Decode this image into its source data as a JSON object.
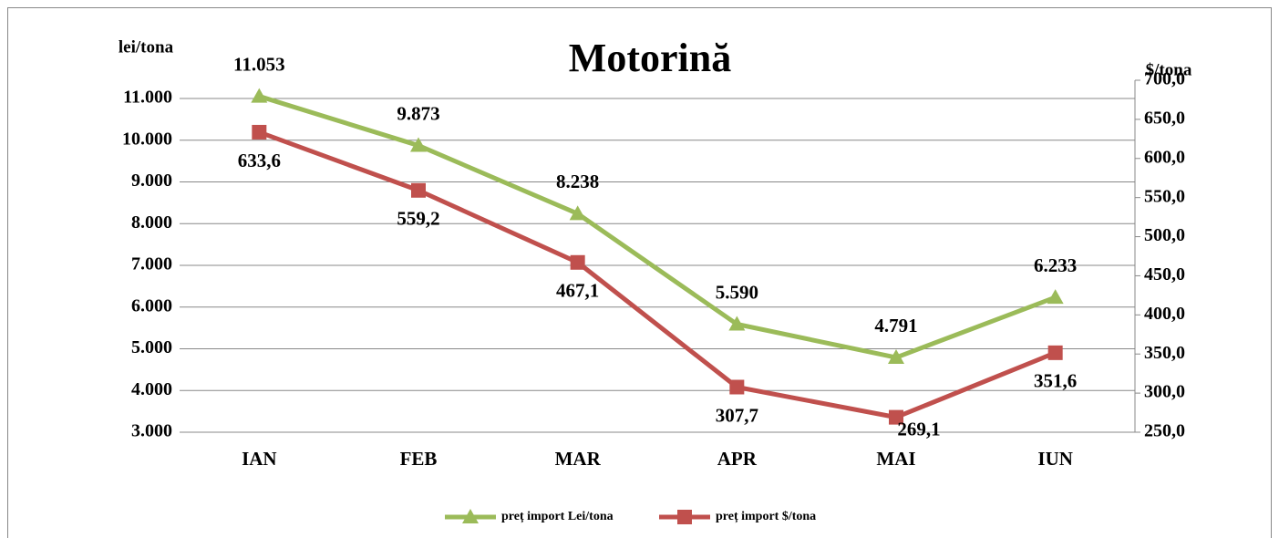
{
  "chart_data": {
    "type": "line",
    "title": "Motorină",
    "y_label": "lei/tona",
    "y2_label": "$/tona",
    "categories": [
      "IAN",
      "FEB",
      "MAR",
      "APR",
      "MAI",
      "IUN"
    ],
    "series": [
      {
        "name": "preț import Lei/tona",
        "color": "#9bbb59",
        "marker": "triangle",
        "values": [
          11053,
          9873,
          8238,
          5590,
          4791,
          6233
        ],
        "value_labels": [
          "11.053",
          "9.873",
          "8.238",
          "5.590",
          "4.791",
          "6.233"
        ]
      },
      {
        "name": "preț import $/tona",
        "color": "#c0504d",
        "marker": "square",
        "axis": "y2",
        "values": [
          633.6,
          559.2,
          467.1,
          307.7,
          269.1,
          351.6
        ],
        "value_labels": [
          "633,6",
          "559,2",
          "467,1",
          "307,7",
          "269,1",
          "351,6"
        ]
      }
    ],
    "ylim": [
      3000,
      11437
    ],
    "yticks": [
      {
        "value": 3000,
        "label": "3.000"
      },
      {
        "value": 4000,
        "label": "4.000"
      },
      {
        "value": 5000,
        "label": "5.000"
      },
      {
        "value": 6000,
        "label": "6.000"
      },
      {
        "value": 7000,
        "label": "7.000"
      },
      {
        "value": 8000,
        "label": "8.000"
      },
      {
        "value": 9000,
        "label": "9.000"
      },
      {
        "value": 10000,
        "label": "10.000"
      },
      {
        "value": 11000,
        "label": "11.000"
      }
    ],
    "y2lim": [
      250,
      700
    ],
    "y2ticks": [
      {
        "value": 250,
        "label": "250,0"
      },
      {
        "value": 300,
        "label": "300,0"
      },
      {
        "value": 350,
        "label": "350,0"
      },
      {
        "value": 400,
        "label": "400,0"
      },
      {
        "value": 450,
        "label": "450,0"
      },
      {
        "value": 500,
        "label": "500,0"
      },
      {
        "value": 550,
        "label": "550,0"
      },
      {
        "value": 600,
        "label": "600,0"
      },
      {
        "value": 650,
        "label": "650,0"
      },
      {
        "value": 700,
        "label": "700,0"
      }
    ],
    "grid": true,
    "legend": "bottom"
  }
}
